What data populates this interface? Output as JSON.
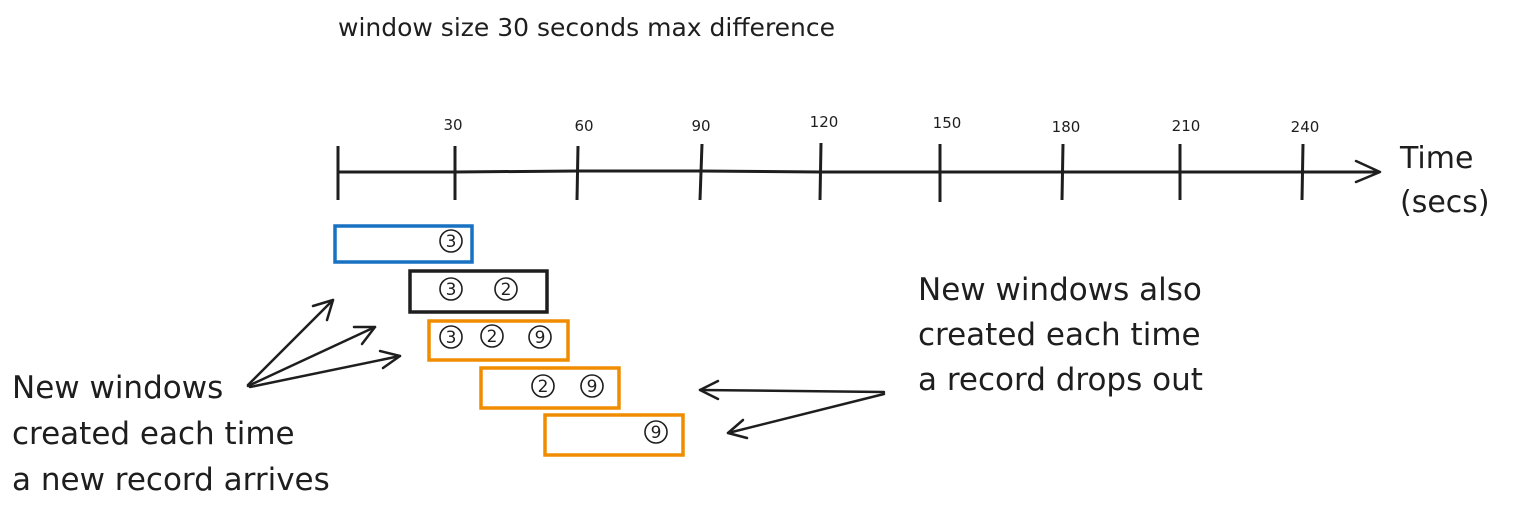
{
  "title": "window size 30 seconds max difference",
  "axis": {
    "label_line1": "Time",
    "label_line2": "(secs)",
    "ticks": [
      "30",
      "60",
      "90",
      "120",
      "150",
      "180",
      "210",
      "240"
    ]
  },
  "windows": [
    {
      "color": "#1971c2",
      "records": [
        "3"
      ]
    },
    {
      "color": "#1e1e1e",
      "records": [
        "3",
        "2"
      ]
    },
    {
      "color": "#f08c00",
      "records": [
        "3",
        "2",
        "9"
      ]
    },
    {
      "color": "#f08c00",
      "records": [
        "2",
        "9"
      ]
    },
    {
      "color": "#f08c00",
      "records": [
        "9"
      ]
    }
  ],
  "notes": {
    "left": [
      "New windows",
      "created each time",
      "a new record arrives"
    ],
    "right": [
      "New windows also",
      "created each time",
      "a record drops out"
    ]
  }
}
